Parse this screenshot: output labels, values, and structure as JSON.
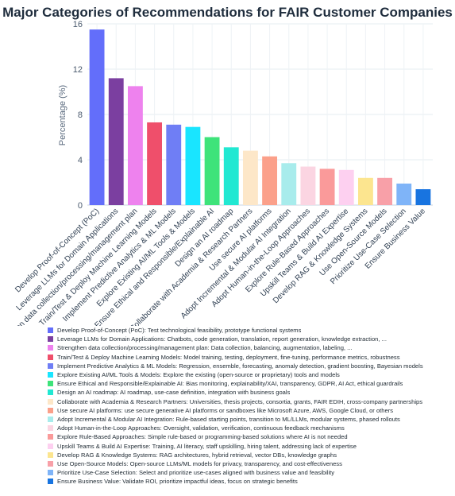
{
  "chart_data": {
    "type": "bar",
    "title": "Major Categories of Recommendations for FAIR Customer Companies",
    "ylabel": "Percentage (%)",
    "xlabel": "",
    "ylim": [
      0,
      16
    ],
    "yticks": [
      "0",
      "4",
      "8",
      "12",
      "16"
    ],
    "grid": true,
    "categories": [
      "Develop Proof-of-Concept (PoC)",
      "Leverage LLMs for Domain Applications",
      "Strengthen data collection/processing/management plan",
      "Train/Test & Deploy Machine Learning Models",
      "Implement Predictive Analytics & ML Models",
      "Explore Existing AI/ML Tools & Models",
      "Ensure Ethical and Responsible/Explainable AI",
      "Design an AI roadmap",
      "Collaborate with Academia & Research Partners",
      "Use secure AI platforms",
      "Adopt Incremental & Modular AI Integration",
      "Adopt Human-in-the-Loop Approaches",
      "Explore Rule-Based Approaches",
      "Upskill Teams & Build AI Expertise",
      "Develop RAG & Knowledge Systems",
      "Use Open-Source Models",
      "Prioritize Use-Case Selection",
      "Ensure Business Value"
    ],
    "values": [
      15.5,
      11.2,
      10.5,
      7.3,
      7.1,
      6.9,
      6.0,
      5.1,
      4.8,
      4.3,
      3.7,
      3.4,
      3.2,
      3.1,
      2.4,
      2.4,
      1.9,
      1.4
    ],
    "colors": [
      "#636efa",
      "#7b3fa0",
      "#ee82ee",
      "#ef4f6b",
      "#6f7ef5",
      "#19e5ff",
      "#3ee37a",
      "#21e8d2",
      "#fde7c8",
      "#fba08a",
      "#a8ecec",
      "#fbd5e2",
      "#fa9a9a",
      "#fdd0f0",
      "#fce58f",
      "#f8a0a8",
      "#7fb4f8",
      "#1874e0"
    ],
    "legend": [
      "Develop Proof-of-Concept (PoC): Test technological feasibility, prototype functional systems",
      "Leverage LLMs for Domain Applications: Chatbots, code generation, translation, report generation, knowledge extraction, ...",
      "Strengthen data collection/processing/management plan: Data collection, balancing, augmentation, labeling, ...",
      "Train/Test & Deploy Machine Learning Models: Model training, testing, deployment, fine-tuning, performance metrics, robustness",
      "Implement Predictive Analytics & ML Models: Regression, ensemble, forecasting, anomaly detection, gradient boosting, Bayesian models",
      "Explore Existing AI/ML Tools & Models: Explore the existing (open-source or proprietary) tools and models",
      "Ensure Ethical and Responsible/Explainable AI: Bias monitoring, explainability/XAI, transparency, GDPR, AI Act, ethical guardrails",
      "Design an AI roadmap: AI roadmap, use-case definition, integration with business goals",
      "Collaborate with Academia & Research Partners: Universities, thesis projects, consortia, grants, FAIR EDIH, cross-company partnerships",
      "Use secure AI platforms: use secure generative AI platforms or sandboxes like Microsoft Azure, AWS, Google Cloud, or others",
      "Adopt Incremental & Modular AI Integration: Rule-based starting points, transition to ML/LLMs, modular systems, phased rollouts",
      "Adopt Human-in-the-Loop Approaches: Oversight, validation, verification, continuous feedback mechanisms",
      "Explore Rule-Based Approaches: Simple rule-based or programming-based solutions where AI is not needed",
      "Upskill Teams & Build AI Expertise: Training, AI literacy, staff upskilling, hiring talent, addressing lack of expertise",
      "Develop RAG & Knowledge Systems: RAG architectures, hybrid retrieval, vector DBs, knowledge graphs",
      "Use Open-Source Models: Open-source LLMs/ML models for privacy, transparency, and cost-effectiveness",
      "Prioritize Use-Case Selection: Select and prioritize use-cases aligned with business value and feasibility",
      "Ensure Business Value: Validate ROI, prioritize impactful ideas, focus on strategic benefits"
    ]
  }
}
